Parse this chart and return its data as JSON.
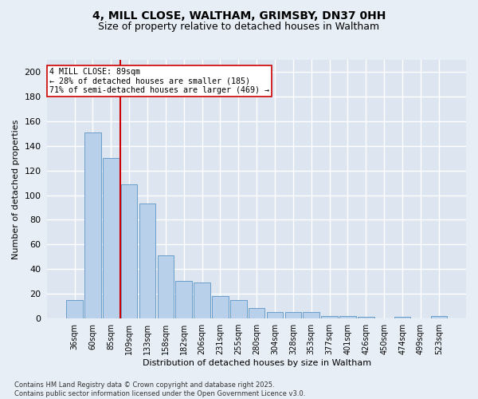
{
  "title": "4, MILL CLOSE, WALTHAM, GRIMSBY, DN37 0HH",
  "subtitle": "Size of property relative to detached houses in Waltham",
  "xlabel": "Distribution of detached houses by size in Waltham",
  "ylabel": "Number of detached properties",
  "categories": [
    "36sqm",
    "60sqm",
    "85sqm",
    "109sqm",
    "133sqm",
    "158sqm",
    "182sqm",
    "206sqm",
    "231sqm",
    "255sqm",
    "280sqm",
    "304sqm",
    "328sqm",
    "353sqm",
    "377sqm",
    "401sqm",
    "426sqm",
    "450sqm",
    "474sqm",
    "499sqm",
    "523sqm"
  ],
  "values": [
    15,
    151,
    130,
    109,
    93,
    51,
    30,
    29,
    18,
    15,
    8,
    5,
    5,
    5,
    2,
    2,
    1,
    0,
    1,
    0,
    2
  ],
  "bar_color": "#b8d0ea",
  "bar_edge_color": "#6a9ec8",
  "vline_x": 2.5,
  "vline_color": "#cc0000",
  "annotation_text": "4 MILL CLOSE: 89sqm\n← 28% of detached houses are smaller (185)\n71% of semi-detached houses are larger (469) →",
  "annotation_box_color": "#ffffff",
  "annotation_box_edge": "#cc0000",
  "ylim": [
    0,
    210
  ],
  "yticks": [
    0,
    20,
    40,
    60,
    80,
    100,
    120,
    140,
    160,
    180,
    200
  ],
  "background_color": "#dde6f0",
  "grid_color": "#ffffff",
  "fig_background": "#e8eef5",
  "footer": "Contains HM Land Registry data © Crown copyright and database right 2025.\nContains public sector information licensed under the Open Government Licence v3.0.",
  "title_fontsize": 10,
  "subtitle_fontsize": 9
}
